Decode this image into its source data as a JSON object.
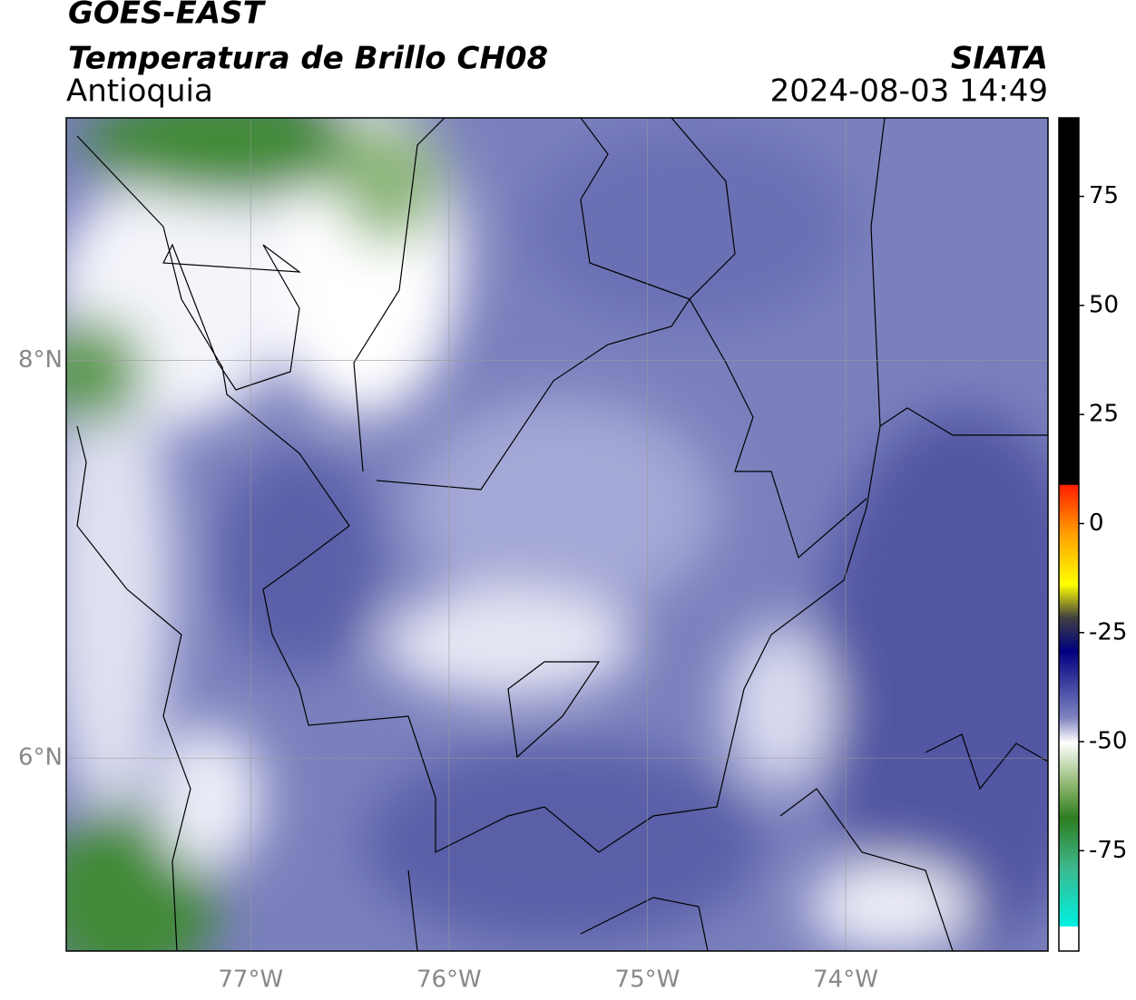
{
  "header": {
    "title": "GOES-EAST",
    "subtitle": "Temperatura de Brillo CH08",
    "region": "Antioquia",
    "source": "SIATA",
    "datetime": "2024-08-03 14:49"
  },
  "map": {
    "xlim": [
      -77.93,
      -72.98
    ],
    "ylim": [
      5.03,
      9.22
    ],
    "xticks": [
      {
        "value": -77,
        "label": "77°W"
      },
      {
        "value": -76,
        "label": "76°W"
      },
      {
        "value": -75,
        "label": "75°W"
      },
      {
        "value": -74,
        "label": "74°W"
      }
    ],
    "yticks": [
      {
        "value": 8,
        "label": "8°N"
      },
      {
        "value": 6,
        "label": "6°N"
      }
    ]
  },
  "colorbar": {
    "lim": [
      -98,
      93
    ],
    "ticks": [
      75,
      50,
      25,
      0,
      -25,
      -50,
      -75
    ]
  }
}
